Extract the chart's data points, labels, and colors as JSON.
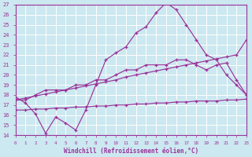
{
  "xlabel": "Windchill (Refroidissement éolien,°C)",
  "xlim": [
    0,
    23
  ],
  "ylim": [
    14,
    27
  ],
  "xticks": [
    0,
    1,
    2,
    3,
    4,
    5,
    6,
    7,
    8,
    9,
    10,
    11,
    12,
    13,
    14,
    15,
    16,
    17,
    18,
    19,
    20,
    21,
    22,
    23
  ],
  "yticks": [
    14,
    15,
    16,
    17,
    18,
    19,
    20,
    21,
    22,
    23,
    24,
    25,
    26,
    27
  ],
  "bg_color": "#cce8f0",
  "line_color": "#993399",
  "grid_color": "#ffffff",
  "line1_x": [
    0,
    1,
    2,
    3,
    4,
    5,
    6,
    7,
    8,
    9,
    10,
    11,
    12,
    13,
    14,
    15,
    16,
    17,
    18,
    19,
    20,
    21,
    22,
    23
  ],
  "line1_y": [
    17.8,
    17.2,
    16.1,
    14.2,
    15.8,
    15.2,
    14.5,
    16.5,
    19.0,
    21.5,
    22.2,
    22.8,
    24.2,
    24.8,
    26.2,
    27.2,
    26.5,
    25.0,
    23.5,
    22.0,
    21.5,
    20.0,
    19.0,
    18.0
  ],
  "line2_x": [
    0,
    1,
    2,
    3,
    4,
    5,
    6,
    7,
    8,
    9,
    10,
    11,
    12,
    13,
    14,
    15,
    16,
    17,
    18,
    19,
    20,
    21,
    22,
    23
  ],
  "line2_y": [
    17.5,
    17.5,
    18.0,
    18.5,
    18.5,
    18.5,
    19.0,
    19.0,
    19.5,
    19.5,
    20.0,
    20.5,
    20.5,
    21.0,
    21.0,
    21.0,
    21.5,
    21.5,
    21.0,
    20.5,
    21.0,
    21.2,
    19.5,
    18.0
  ],
  "line3_x": [
    0,
    1,
    2,
    3,
    4,
    5,
    6,
    7,
    8,
    9,
    10,
    11,
    12,
    13,
    14,
    15,
    16,
    17,
    18,
    19,
    20,
    21,
    22,
    23
  ],
  "line3_y": [
    16.5,
    16.5,
    16.6,
    16.6,
    16.7,
    16.7,
    16.8,
    16.8,
    16.9,
    16.9,
    17.0,
    17.0,
    17.1,
    17.1,
    17.2,
    17.2,
    17.3,
    17.3,
    17.4,
    17.4,
    17.4,
    17.5,
    17.5,
    17.6
  ],
  "line4_x": [
    0,
    1,
    2,
    3,
    4,
    5,
    6,
    7,
    8,
    9,
    10,
    11,
    12,
    13,
    14,
    15,
    16,
    17,
    18,
    19,
    20,
    21,
    22,
    23
  ],
  "line4_y": [
    17.5,
    17.7,
    17.9,
    18.1,
    18.3,
    18.5,
    18.7,
    18.9,
    19.1,
    19.3,
    19.5,
    19.8,
    20.0,
    20.2,
    20.4,
    20.6,
    20.8,
    21.0,
    21.2,
    21.4,
    21.6,
    21.8,
    22.0,
    23.5
  ]
}
